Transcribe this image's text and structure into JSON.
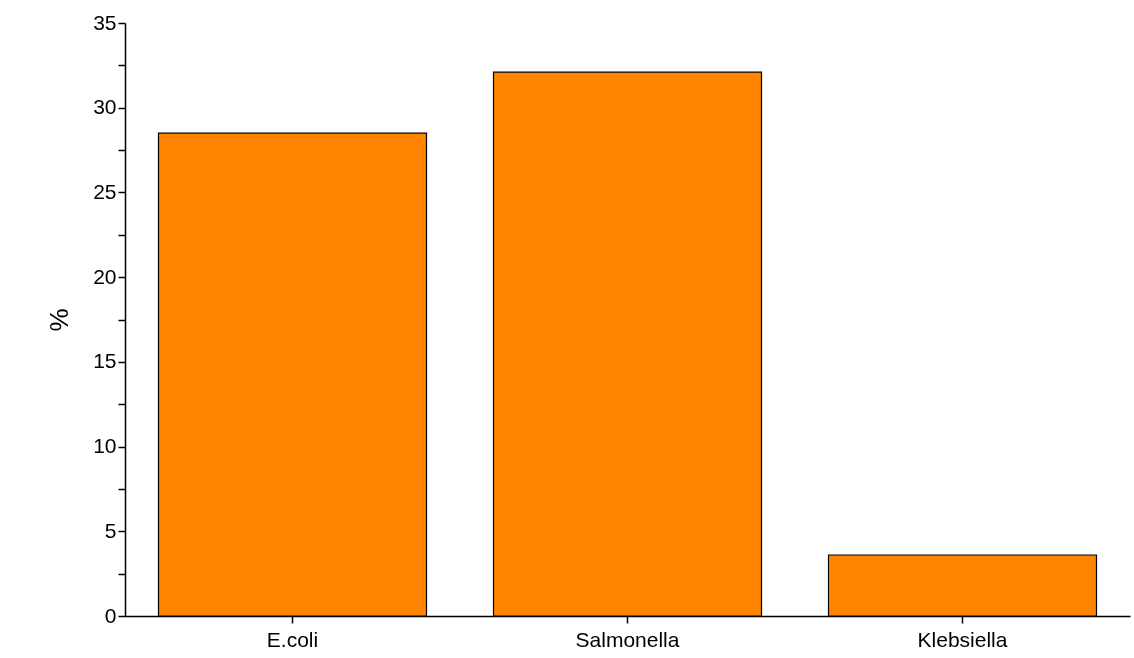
{
  "chart_data": {
    "type": "bar",
    "ylabel": "%",
    "categories": [
      "E.coli",
      "Salmonella",
      "Klebsiella"
    ],
    "values": [
      28.5,
      32.1,
      3.6
    ],
    "color": "#ff8400",
    "ylim": [
      0,
      35
    ],
    "yticks": [
      0,
      {
        "value": 2.5,
        "label": null
      },
      5,
      {
        "value": 7.5,
        "label": null
      },
      10,
      {
        "value": 12.5,
        "label": null
      },
      15,
      {
        "value": 17.5,
        "label": null
      },
      20,
      {
        "value": 22.5,
        "label": null
      },
      25,
      {
        "value": 27.5,
        "label": null
      },
      30,
      {
        "value": 32.5,
        "label": null
      },
      35
    ],
    "grid": false
  }
}
